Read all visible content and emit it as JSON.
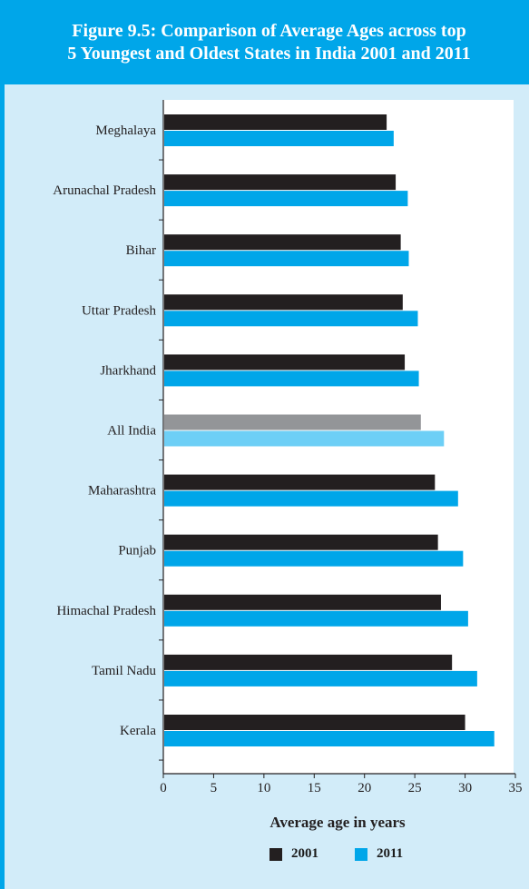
{
  "header": {
    "title_line1": "Figure 9.5: Comparison of Average Ages across top",
    "title_line2": "5 Youngest and Oldest States in India 2001 and 2011"
  },
  "colors": {
    "accent": "#00a6e9",
    "panel": "#d2ecf9",
    "series_2001": "#231f20",
    "series_2011": "#00a6e9",
    "series_2001_highlight": "#939598",
    "series_2011_highlight": "#6dcff6"
  },
  "chart_data": {
    "type": "bar",
    "orientation": "horizontal",
    "title": "Figure 9.5: Comparison of Average Ages across top 5 Youngest and Oldest States in India 2001 and 2011",
    "xlabel": "Average age in years",
    "ylabel": "",
    "xlim": [
      0,
      35
    ],
    "xticks": [
      0,
      5,
      10,
      15,
      20,
      25,
      30,
      35
    ],
    "grid": false,
    "legend_position": "bottom",
    "highlighted_category": "All India",
    "categories": [
      "Meghalaya",
      "Arunachal Pradesh",
      "Bihar",
      "Uttar Pradesh",
      "Jharkhand",
      "All India",
      "Maharashtra",
      "Punjab",
      "Himachal Pradesh",
      "Tamil Nadu",
      "Kerala"
    ],
    "series": [
      {
        "name": "2001",
        "values": [
          22.2,
          23.1,
          23.6,
          23.8,
          24.0,
          25.6,
          27.0,
          27.3,
          27.6,
          28.7,
          30.0
        ]
      },
      {
        "name": "2011",
        "values": [
          22.9,
          24.3,
          24.4,
          25.3,
          25.4,
          27.9,
          29.3,
          29.8,
          30.3,
          31.2,
          32.9
        ]
      }
    ]
  }
}
